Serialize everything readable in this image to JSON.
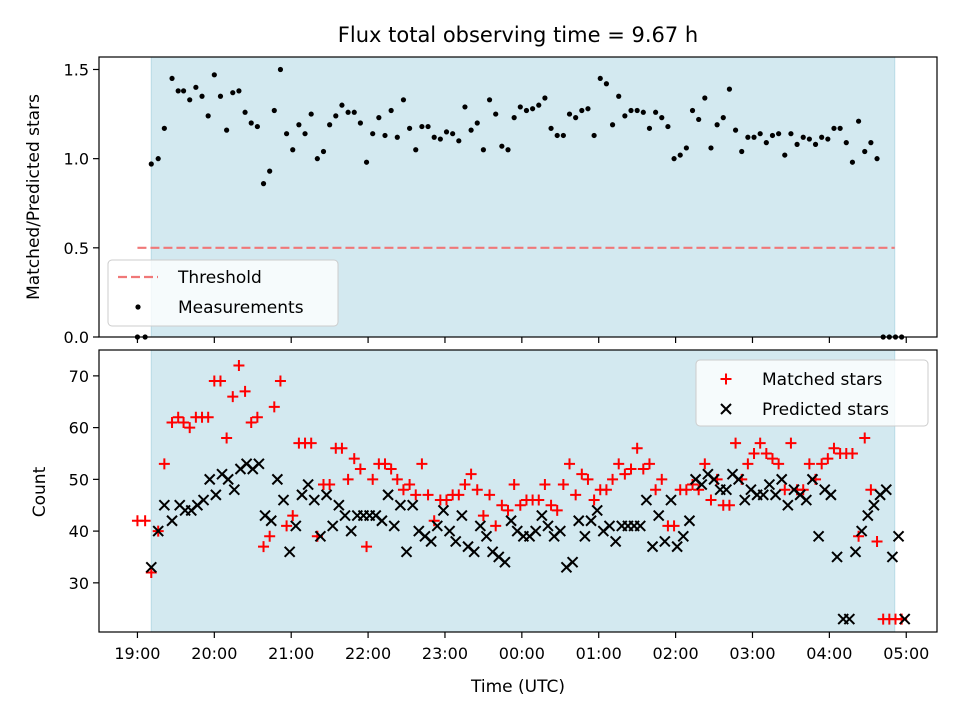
{
  "chart_data": [
    {
      "type": "scatter",
      "title": "Flux total observing time = 9.67 h",
      "ylabel": "Matched/Predicted stars",
      "xlabel": "",
      "x_unit": "hours since 19:00 UTC",
      "xlim": [
        -0.5,
        10.4
      ],
      "ylim": [
        0,
        1.57
      ],
      "yticks": [
        0.0,
        0.5,
        1.0,
        1.5
      ],
      "ytick_labels": [
        "0.0",
        "0.5",
        "1.0",
        "1.5"
      ],
      "observing_window": [
        0.18,
        9.85
      ],
      "observing_window_color": "#d3e9f0",
      "threshold": {
        "name": "Threshold",
        "value": 0.5,
        "x_range": [
          0.0,
          9.85
        ],
        "color": "#f07878"
      },
      "legend": {
        "placement": "lower-left",
        "entries": [
          "Threshold",
          "Measurements"
        ]
      },
      "series": [
        {
          "name": "Measurements",
          "color": "#000000",
          "x": [
            0.0,
            0.1,
            0.18,
            0.27,
            0.35,
            0.45,
            0.53,
            0.6,
            0.68,
            0.76,
            0.84,
            0.92,
            1.0,
            1.08,
            1.16,
            1.24,
            1.32,
            1.4,
            1.48,
            1.56,
            1.64,
            1.72,
            1.78,
            1.86,
            1.94,
            2.02,
            2.1,
            2.18,
            2.26,
            2.34,
            2.42,
            2.5,
            2.58,
            2.66,
            2.74,
            2.82,
            2.9,
            2.98,
            3.06,
            3.14,
            3.22,
            3.3,
            3.38,
            3.46,
            3.54,
            3.62,
            3.7,
            3.78,
            3.86,
            3.94,
            4.02,
            4.1,
            4.18,
            4.26,
            4.34,
            4.42,
            4.5,
            4.58,
            4.66,
            4.74,
            4.82,
            4.9,
            4.98,
            5.06,
            5.14,
            5.22,
            5.3,
            5.38,
            5.46,
            5.54,
            5.62,
            5.7,
            5.78,
            5.86,
            5.94,
            6.02,
            6.1,
            6.18,
            6.26,
            6.34,
            6.42,
            6.5,
            6.58,
            6.66,
            6.74,
            6.82,
            6.9,
            6.98,
            7.06,
            7.14,
            7.22,
            7.3,
            7.38,
            7.46,
            7.54,
            7.62,
            7.7,
            7.78,
            7.86,
            7.94,
            8.02,
            8.1,
            8.18,
            8.26,
            8.34,
            8.42,
            8.5,
            8.58,
            8.66,
            8.74,
            8.82,
            8.9,
            8.98,
            9.06,
            9.14,
            9.22,
            9.3,
            9.38,
            9.46,
            9.54,
            9.62,
            9.7,
            9.78,
            9.86,
            9.94
          ],
          "y": [
            0.0,
            0.0,
            0.97,
            1.0,
            1.17,
            1.45,
            1.38,
            1.38,
            1.33,
            1.4,
            1.35,
            1.24,
            1.47,
            1.35,
            1.16,
            1.37,
            1.38,
            1.26,
            1.2,
            1.18,
            0.86,
            0.93,
            1.27,
            1.5,
            1.14,
            1.05,
            1.19,
            1.14,
            1.25,
            1.0,
            1.04,
            1.19,
            1.24,
            1.3,
            1.26,
            1.26,
            1.2,
            0.98,
            1.14,
            1.23,
            1.13,
            1.27,
            1.12,
            1.33,
            1.17,
            1.05,
            1.18,
            1.18,
            1.12,
            1.11,
            1.15,
            1.14,
            1.1,
            1.29,
            1.16,
            1.2,
            1.05,
            1.33,
            1.25,
            1.07,
            1.05,
            1.23,
            1.29,
            1.27,
            1.28,
            1.3,
            1.34,
            1.17,
            1.13,
            1.13,
            1.25,
            1.23,
            1.27,
            1.28,
            1.13,
            1.45,
            1.42,
            1.19,
            1.35,
            1.24,
            1.27,
            1.27,
            1.26,
            1.17,
            1.26,
            1.23,
            1.18,
            1.0,
            1.02,
            1.06,
            1.27,
            1.22,
            1.34,
            1.06,
            1.19,
            1.23,
            1.39,
            1.16,
            1.04,
            1.12,
            1.12,
            1.14,
            1.09,
            1.13,
            1.14,
            1.02,
            1.14,
            1.08,
            1.12,
            1.11,
            1.08,
            1.12,
            1.11,
            1.17,
            1.17,
            1.09,
            0.98,
            1.21,
            1.04,
            1.09,
            1.0,
            0.0,
            0.0,
            0.0,
            0.0
          ]
        }
      ]
    },
    {
      "type": "scatter",
      "title": "",
      "ylabel": "Count",
      "xlabel": "Time (UTC)",
      "x_unit": "hours since 19:00 UTC",
      "xlim": [
        -0.5,
        10.4
      ],
      "ylim": [
        20.5,
        75
      ],
      "yticks": [
        30,
        40,
        50,
        60,
        70
      ],
      "ytick_labels": [
        "30",
        "40",
        "50",
        "60",
        "70"
      ],
      "xticks": [
        0,
        1,
        2,
        3,
        4,
        5,
        6,
        7,
        8,
        9,
        10
      ],
      "xtick_labels": [
        "19:00",
        "20:00",
        "21:00",
        "22:00",
        "23:00",
        "00:00",
        "01:00",
        "02:00",
        "03:00",
        "04:00",
        "05:00"
      ],
      "observing_window": [
        0.18,
        9.85
      ],
      "observing_window_color": "#d3e9f0",
      "legend": {
        "placement": "top-right",
        "entries": [
          "Matched stars",
          "Predicted stars"
        ]
      },
      "series": [
        {
          "name": "Matched stars",
          "marker": "plus",
          "color": "#ff0000",
          "x": [
            0.0,
            0.1,
            0.18,
            0.27,
            0.35,
            0.45,
            0.53,
            0.6,
            0.68,
            0.76,
            0.84,
            0.92,
            1.0,
            1.08,
            1.16,
            1.24,
            1.32,
            1.4,
            1.48,
            1.56,
            1.64,
            1.72,
            1.78,
            1.86,
            1.94,
            2.02,
            2.1,
            2.18,
            2.26,
            2.34,
            2.42,
            2.5,
            2.58,
            2.66,
            2.74,
            2.82,
            2.9,
            2.98,
            3.06,
            3.14,
            3.22,
            3.3,
            3.38,
            3.46,
            3.54,
            3.62,
            3.7,
            3.78,
            3.86,
            3.94,
            4.02,
            4.1,
            4.18,
            4.26,
            4.34,
            4.42,
            4.5,
            4.58,
            4.66,
            4.74,
            4.82,
            4.9,
            4.98,
            5.06,
            5.14,
            5.22,
            5.3,
            5.38,
            5.46,
            5.54,
            5.62,
            5.7,
            5.78,
            5.86,
            5.94,
            6.02,
            6.1,
            6.18,
            6.26,
            6.34,
            6.42,
            6.5,
            6.58,
            6.66,
            6.74,
            6.82,
            6.9,
            6.98,
            7.06,
            7.14,
            7.22,
            7.3,
            7.38,
            7.46,
            7.54,
            7.62,
            7.7,
            7.78,
            7.86,
            7.94,
            8.02,
            8.1,
            8.18,
            8.26,
            8.34,
            8.42,
            8.5,
            8.58,
            8.66,
            8.74,
            8.82,
            8.9,
            8.98,
            9.06,
            9.14,
            9.22,
            9.3,
            9.38,
            9.46,
            9.54,
            9.62,
            9.7,
            9.78,
            9.86,
            9.94
          ],
          "y": [
            42,
            42,
            32,
            40,
            53,
            61,
            62,
            61,
            60,
            62,
            62,
            62,
            69,
            69,
            58,
            66,
            72,
            67,
            61,
            62,
            37,
            39,
            64,
            69,
            41,
            43,
            57,
            57,
            57,
            39,
            49,
            49,
            56,
            56,
            50,
            54,
            52,
            37,
            50,
            53,
            53,
            52,
            50,
            48,
            49,
            47,
            53,
            47,
            42,
            46,
            46,
            47,
            47,
            49,
            51,
            48,
            43,
            47,
            41,
            45,
            44,
            49,
            45,
            46,
            46,
            46,
            49,
            45,
            44,
            49,
            53,
            47,
            51,
            50,
            46,
            48,
            48,
            50,
            53,
            51,
            52,
            56,
            52,
            53,
            48,
            50,
            41,
            41,
            48,
            48,
            49,
            48,
            53,
            46,
            50,
            45,
            45,
            57,
            50,
            53,
            55,
            57,
            55,
            54,
            53,
            48,
            57,
            48,
            48,
            53,
            50,
            53,
            54,
            56,
            55,
            55,
            55,
            39,
            58,
            48,
            38,
            23,
            23,
            23,
            23
          ]
        },
        {
          "name": "Predicted stars",
          "marker": "x",
          "color": "#000000",
          "x": [
            0.18,
            0.27,
            0.35,
            0.45,
            0.55,
            0.62,
            0.7,
            0.78,
            0.86,
            0.94,
            1.02,
            1.1,
            1.18,
            1.26,
            1.34,
            1.42,
            1.5,
            1.58,
            1.66,
            1.74,
            1.82,
            1.9,
            1.98,
            2.06,
            2.14,
            2.22,
            2.3,
            2.38,
            2.46,
            2.54,
            2.62,
            2.7,
            2.78,
            2.86,
            2.94,
            3.02,
            3.1,
            3.18,
            3.26,
            3.34,
            3.42,
            3.5,
            3.58,
            3.66,
            3.74,
            3.82,
            3.9,
            3.98,
            4.06,
            4.14,
            4.22,
            4.3,
            4.38,
            4.46,
            4.54,
            4.62,
            4.7,
            4.78,
            4.86,
            4.94,
            5.02,
            5.1,
            5.18,
            5.26,
            5.34,
            5.42,
            5.5,
            5.58,
            5.66,
            5.74,
            5.82,
            5.9,
            5.98,
            6.06,
            6.14,
            6.22,
            6.3,
            6.38,
            6.46,
            6.54,
            6.62,
            6.7,
            6.78,
            6.86,
            6.94,
            7.02,
            7.1,
            7.18,
            7.26,
            7.34,
            7.42,
            7.5,
            7.58,
            7.66,
            7.74,
            7.82,
            7.9,
            7.98,
            8.06,
            8.14,
            8.22,
            8.3,
            8.38,
            8.46,
            8.54,
            8.62,
            8.7,
            8.78,
            8.86,
            8.94,
            9.02,
            9.1,
            9.18,
            9.26,
            9.34,
            9.42,
            9.5,
            9.58,
            9.66,
            9.74,
            9.82,
            9.9,
            9.98
          ],
          "y": [
            33,
            40,
            45,
            42,
            45,
            44,
            44,
            45,
            46,
            50,
            47,
            51,
            50,
            48,
            52,
            53,
            52,
            53,
            43,
            42,
            50,
            46,
            36,
            41,
            47,
            49,
            46,
            39,
            47,
            41,
            45,
            43,
            40,
            43,
            43,
            43,
            43,
            42,
            47,
            41,
            45,
            36,
            45,
            40,
            39,
            38,
            41,
            44,
            40,
            38,
            43,
            37,
            36,
            41,
            39,
            36,
            35,
            34,
            42,
            40,
            39,
            39,
            40,
            43,
            41,
            39,
            40,
            33,
            34,
            42,
            39,
            42,
            44,
            40,
            41,
            38,
            41,
            41,
            41,
            41,
            46,
            37,
            43,
            38,
            46,
            37,
            39,
            42,
            50,
            49,
            51,
            50,
            48,
            48,
            51,
            50,
            46,
            48,
            47,
            47,
            49,
            47,
            50,
            45,
            48,
            47,
            46,
            50,
            39,
            48,
            47,
            35,
            23,
            23,
            36,
            40,
            43,
            45,
            47,
            48,
            35,
            39,
            23
          ]
        }
      ]
    }
  ]
}
